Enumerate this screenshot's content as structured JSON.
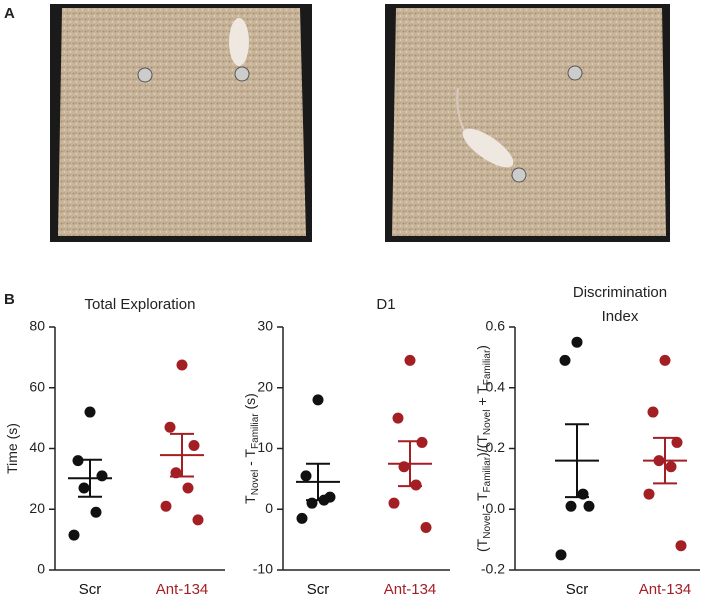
{
  "panels": [
    "A",
    "B"
  ],
  "chart_data": [
    {
      "type": "dot",
      "title": [
        "Total Exploration"
      ],
      "y_label": [
        "Time (s)"
      ],
      "ylim": [
        0,
        80
      ],
      "yticks": [
        0,
        20,
        40,
        60,
        80
      ],
      "series": [
        {
          "name": "Scr",
          "color": "#111111",
          "values": [
            52,
            36,
            31,
            27,
            19,
            11.5
          ],
          "mean": 30.2,
          "error": 6.1
        },
        {
          "name": "Ant-134",
          "color": "#a31f24",
          "values": [
            67.5,
            47,
            41,
            32,
            27,
            21,
            16.5
          ],
          "mean": 37.8,
          "error": 7
        }
      ]
    },
    {
      "type": "dot",
      "title": [
        "D1"
      ],
      "y_label": [
        "T",
        "Novel",
        " - T",
        "Familiar",
        " (s)"
      ],
      "ylim": [
        -10,
        30
      ],
      "yticks": [
        -10,
        0,
        10,
        20,
        30
      ],
      "series": [
        {
          "name": "Scr",
          "color": "#111111",
          "values": [
            18,
            5.5,
            2,
            1,
            1.5,
            -1.5
          ],
          "mean": 4.5,
          "error": 3
        },
        {
          "name": "Ant-134",
          "color": "#a31f24",
          "values": [
            24.5,
            15,
            11,
            7,
            4,
            1,
            -3
          ],
          "mean": 7.5,
          "error": 3.7
        }
      ]
    },
    {
      "type": "dot",
      "title": [
        "Discrimination",
        "Index"
      ],
      "y_label": [
        "(T",
        "Novel",
        " - T",
        "Familiar",
        ")/(T",
        "Novel",
        " + T",
        "Familiar",
        ")"
      ],
      "ylim": [
        -0.2,
        0.6
      ],
      "yticks": [
        -0.2,
        {
          "value": 0,
          "label": "0.0"
        },
        0.2,
        0.4,
        0.6
      ],
      "series": [
        {
          "name": "Scr",
          "color": "#111111",
          "values": [
            0.55,
            0.49,
            0.01,
            0.01,
            0.05,
            -0.15
          ],
          "mean": 0.16,
          "error": 0.12
        },
        {
          "name": "Ant-134",
          "color": "#a31f24",
          "values": [
            0.49,
            0.32,
            0.22,
            0.16,
            0.14,
            0.05,
            -0.12
          ],
          "mean": 0.16,
          "error": 0.075
        }
      ]
    }
  ]
}
